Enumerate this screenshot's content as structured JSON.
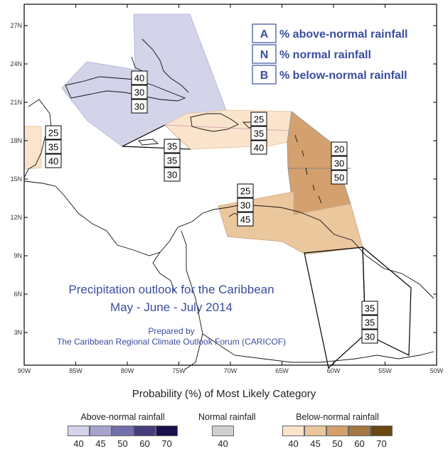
{
  "map": {
    "title_line1": "Precipitation outlook for the Caribbean",
    "title_line2": "May - June - July 2014",
    "prepared_by": "Prepared by",
    "organization": "The Caribbean Regional Climate Outlook Forum (CARICOF)",
    "lat_ticks": [
      "27N",
      "24N",
      "21N",
      "18N",
      "15N",
      "12N",
      "9N",
      "6N",
      "3N"
    ],
    "lon_ticks": [
      "90W",
      "85W",
      "80W",
      "75W",
      "70W",
      "65W",
      "60W",
      "55W",
      "50W"
    ],
    "key": [
      {
        "letter": "A",
        "text": "% above-normal rainfall"
      },
      {
        "letter": "N",
        "text": "% normal rainfall"
      },
      {
        "letter": "B",
        "text": "% below-normal rainfall"
      }
    ],
    "regions": [
      {
        "name": "bahamas-cuba",
        "A": "40",
        "N": "30",
        "B": "30",
        "category": "above-normal",
        "level": "40"
      },
      {
        "name": "belize-yucatan",
        "A": "25",
        "N": "35",
        "B": "40",
        "category": "below-normal",
        "level": "40"
      },
      {
        "name": "jamaica",
        "A": "35",
        "N": "35",
        "B": "30",
        "category": "none",
        "level": ""
      },
      {
        "name": "hispaniola-puerto-rico",
        "A": "25",
        "N": "35",
        "B": "40",
        "category": "below-normal",
        "level": "40"
      },
      {
        "name": "lesser-antilles",
        "A": "20",
        "N": "30",
        "B": "50",
        "category": "below-normal",
        "level": "50"
      },
      {
        "name": "abc-islands-venezuela-coast",
        "A": "25",
        "N": "30",
        "B": "45",
        "category": "below-normal",
        "level": "45"
      },
      {
        "name": "guianas",
        "A": "35",
        "N": "35",
        "B": "30",
        "category": "none",
        "level": ""
      }
    ]
  },
  "legend": {
    "title": "Probability (%) of Most Likely Category",
    "above": {
      "label": "Above-normal rainfall",
      "levels": [
        "40",
        "45",
        "50",
        "60",
        "70"
      ],
      "colors": [
        "#d3d3ea",
        "#a6a3ce",
        "#7270ab",
        "#463d7f",
        "#1a0e4d"
      ]
    },
    "normal": {
      "label": "Normal rainfall",
      "levels": [
        "40"
      ],
      "colors": [
        "#cfcfcf"
      ]
    },
    "below": {
      "label": "Below-normal rainfall",
      "levels": [
        "40",
        "45",
        "50",
        "60",
        "70"
      ],
      "colors": [
        "#fbe4cc",
        "#ebc79e",
        "#d4a06e",
        "#a57843",
        "#6b4813"
      ]
    }
  }
}
